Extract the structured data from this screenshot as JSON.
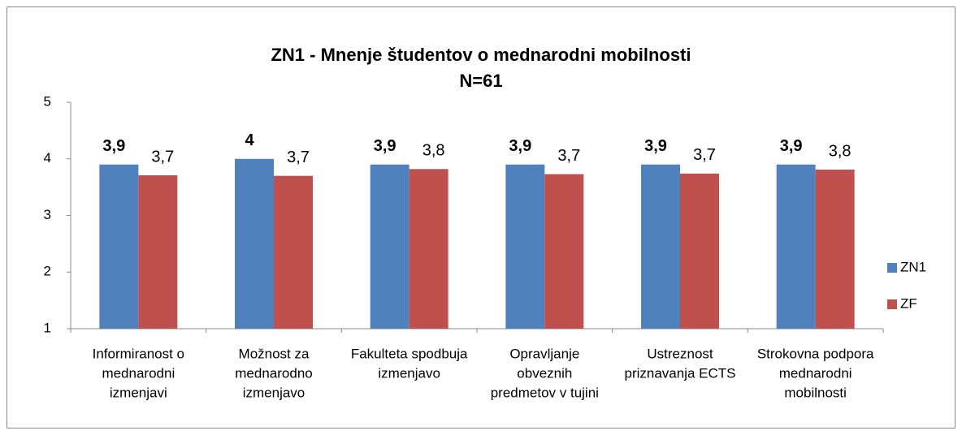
{
  "chart_data": {
    "type": "bar",
    "title": "ZN1 - Mnenje študentov o mednarodni mobilnosti",
    "subtitle": "N=61",
    "categories": [
      [
        "Informiranost o",
        "mednarodni",
        "izmenjavi"
      ],
      [
        "Možnost za",
        "mednarodno",
        "izmenjavo"
      ],
      [
        "Fakulteta spodbuja",
        "izmenjavo"
      ],
      [
        "Opravljanje",
        "obveznih",
        "predmetov v tujini"
      ],
      [
        "Ustreznost",
        "priznavanja ECTS"
      ],
      [
        "Strokovna podpora",
        "mednarodni",
        "mobilnosti"
      ]
    ],
    "series": [
      {
        "name": "ZN1",
        "color": "#4f81bd",
        "values": [
          3.9,
          4,
          3.9,
          3.9,
          3.9,
          3.9
        ],
        "value_labels": [
          "3,9",
          "4",
          "3,9",
          "3,9",
          "3,9",
          "3,9"
        ]
      },
      {
        "name": "ZF",
        "color": "#c0504d",
        "values": [
          3.71,
          3.7,
          3.82,
          3.73,
          3.74,
          3.81
        ],
        "value_labels": [
          "3,7",
          "3,7",
          "3,8",
          "3,7",
          "3,7",
          "3,8"
        ]
      }
    ],
    "ylim": [
      1,
      5
    ],
    "yticks": [
      1,
      2,
      3,
      4,
      5
    ],
    "grid": false,
    "legend": "right"
  }
}
